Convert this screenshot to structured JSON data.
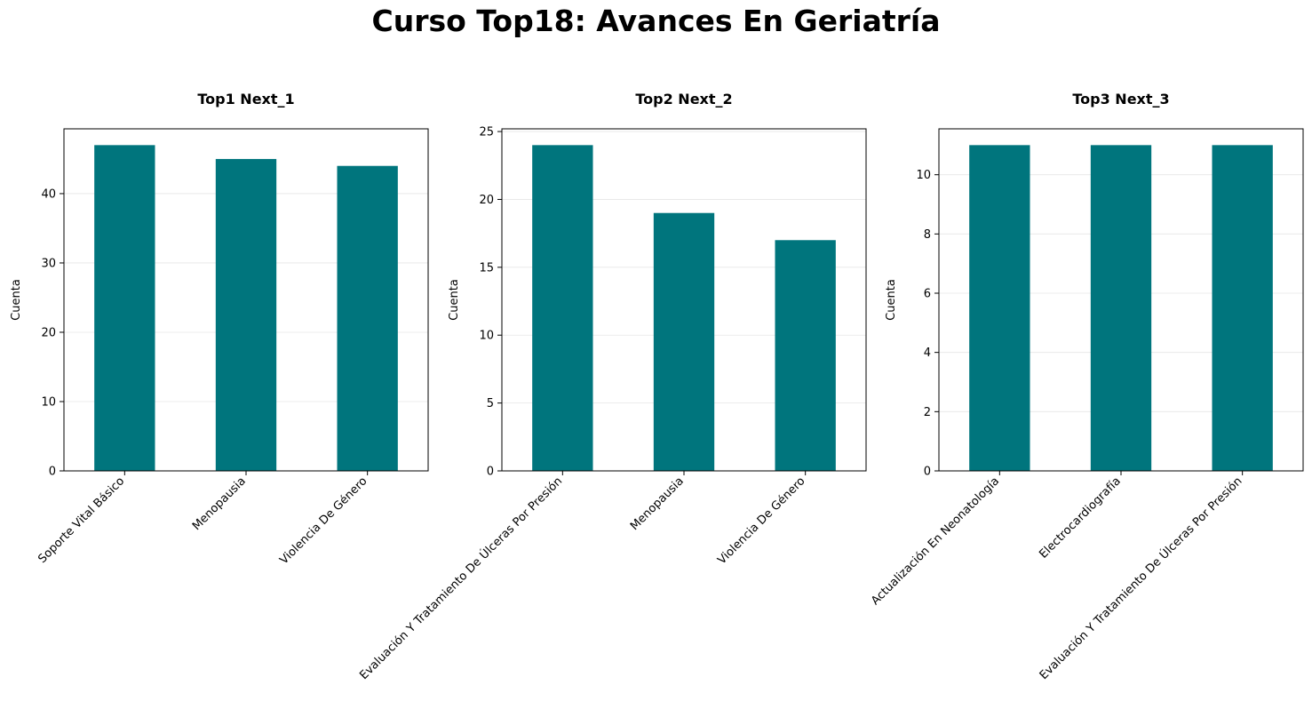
{
  "figure": {
    "title": "Curso Top18: Avances En Geriatría"
  },
  "style": {
    "bar_color": "#00757d",
    "grid_color": "#e6e6e6",
    "axis_color": "#000000"
  },
  "chart_data": [
    {
      "type": "bar",
      "title": "Top1 Next_1",
      "ylabel": "Cuenta",
      "xlabel": "",
      "categories": [
        "Soporte Vital Básico",
        "Menopausia",
        "Violencia De Género"
      ],
      "values": [
        47,
        45,
        44
      ],
      "ylim": [
        0,
        49.35
      ],
      "yticks": [
        0,
        10,
        20,
        30,
        40
      ],
      "grid": "y"
    },
    {
      "type": "bar",
      "title": "Top2 Next_2",
      "ylabel": "Cuenta",
      "xlabel": "",
      "categories": [
        "Evaluación Y Tratamiento De Úlceras Por Presión",
        "Menopausia",
        "Violencia De Género"
      ],
      "values": [
        24,
        19,
        17
      ],
      "ylim": [
        0,
        25.2
      ],
      "yticks": [
        0,
        5,
        10,
        15,
        20,
        25
      ],
      "grid": "y"
    },
    {
      "type": "bar",
      "title": "Top3 Next_3",
      "ylabel": "Cuenta",
      "xlabel": "",
      "categories": [
        "Actualización En Neonatología",
        "Electrocardiografía",
        "Evaluación Y Tratamiento De Úlceras Por Presión"
      ],
      "values": [
        11,
        11,
        11
      ],
      "ylim": [
        0,
        11.55
      ],
      "yticks": [
        0,
        2,
        4,
        6,
        8,
        10
      ],
      "grid": "y"
    }
  ]
}
